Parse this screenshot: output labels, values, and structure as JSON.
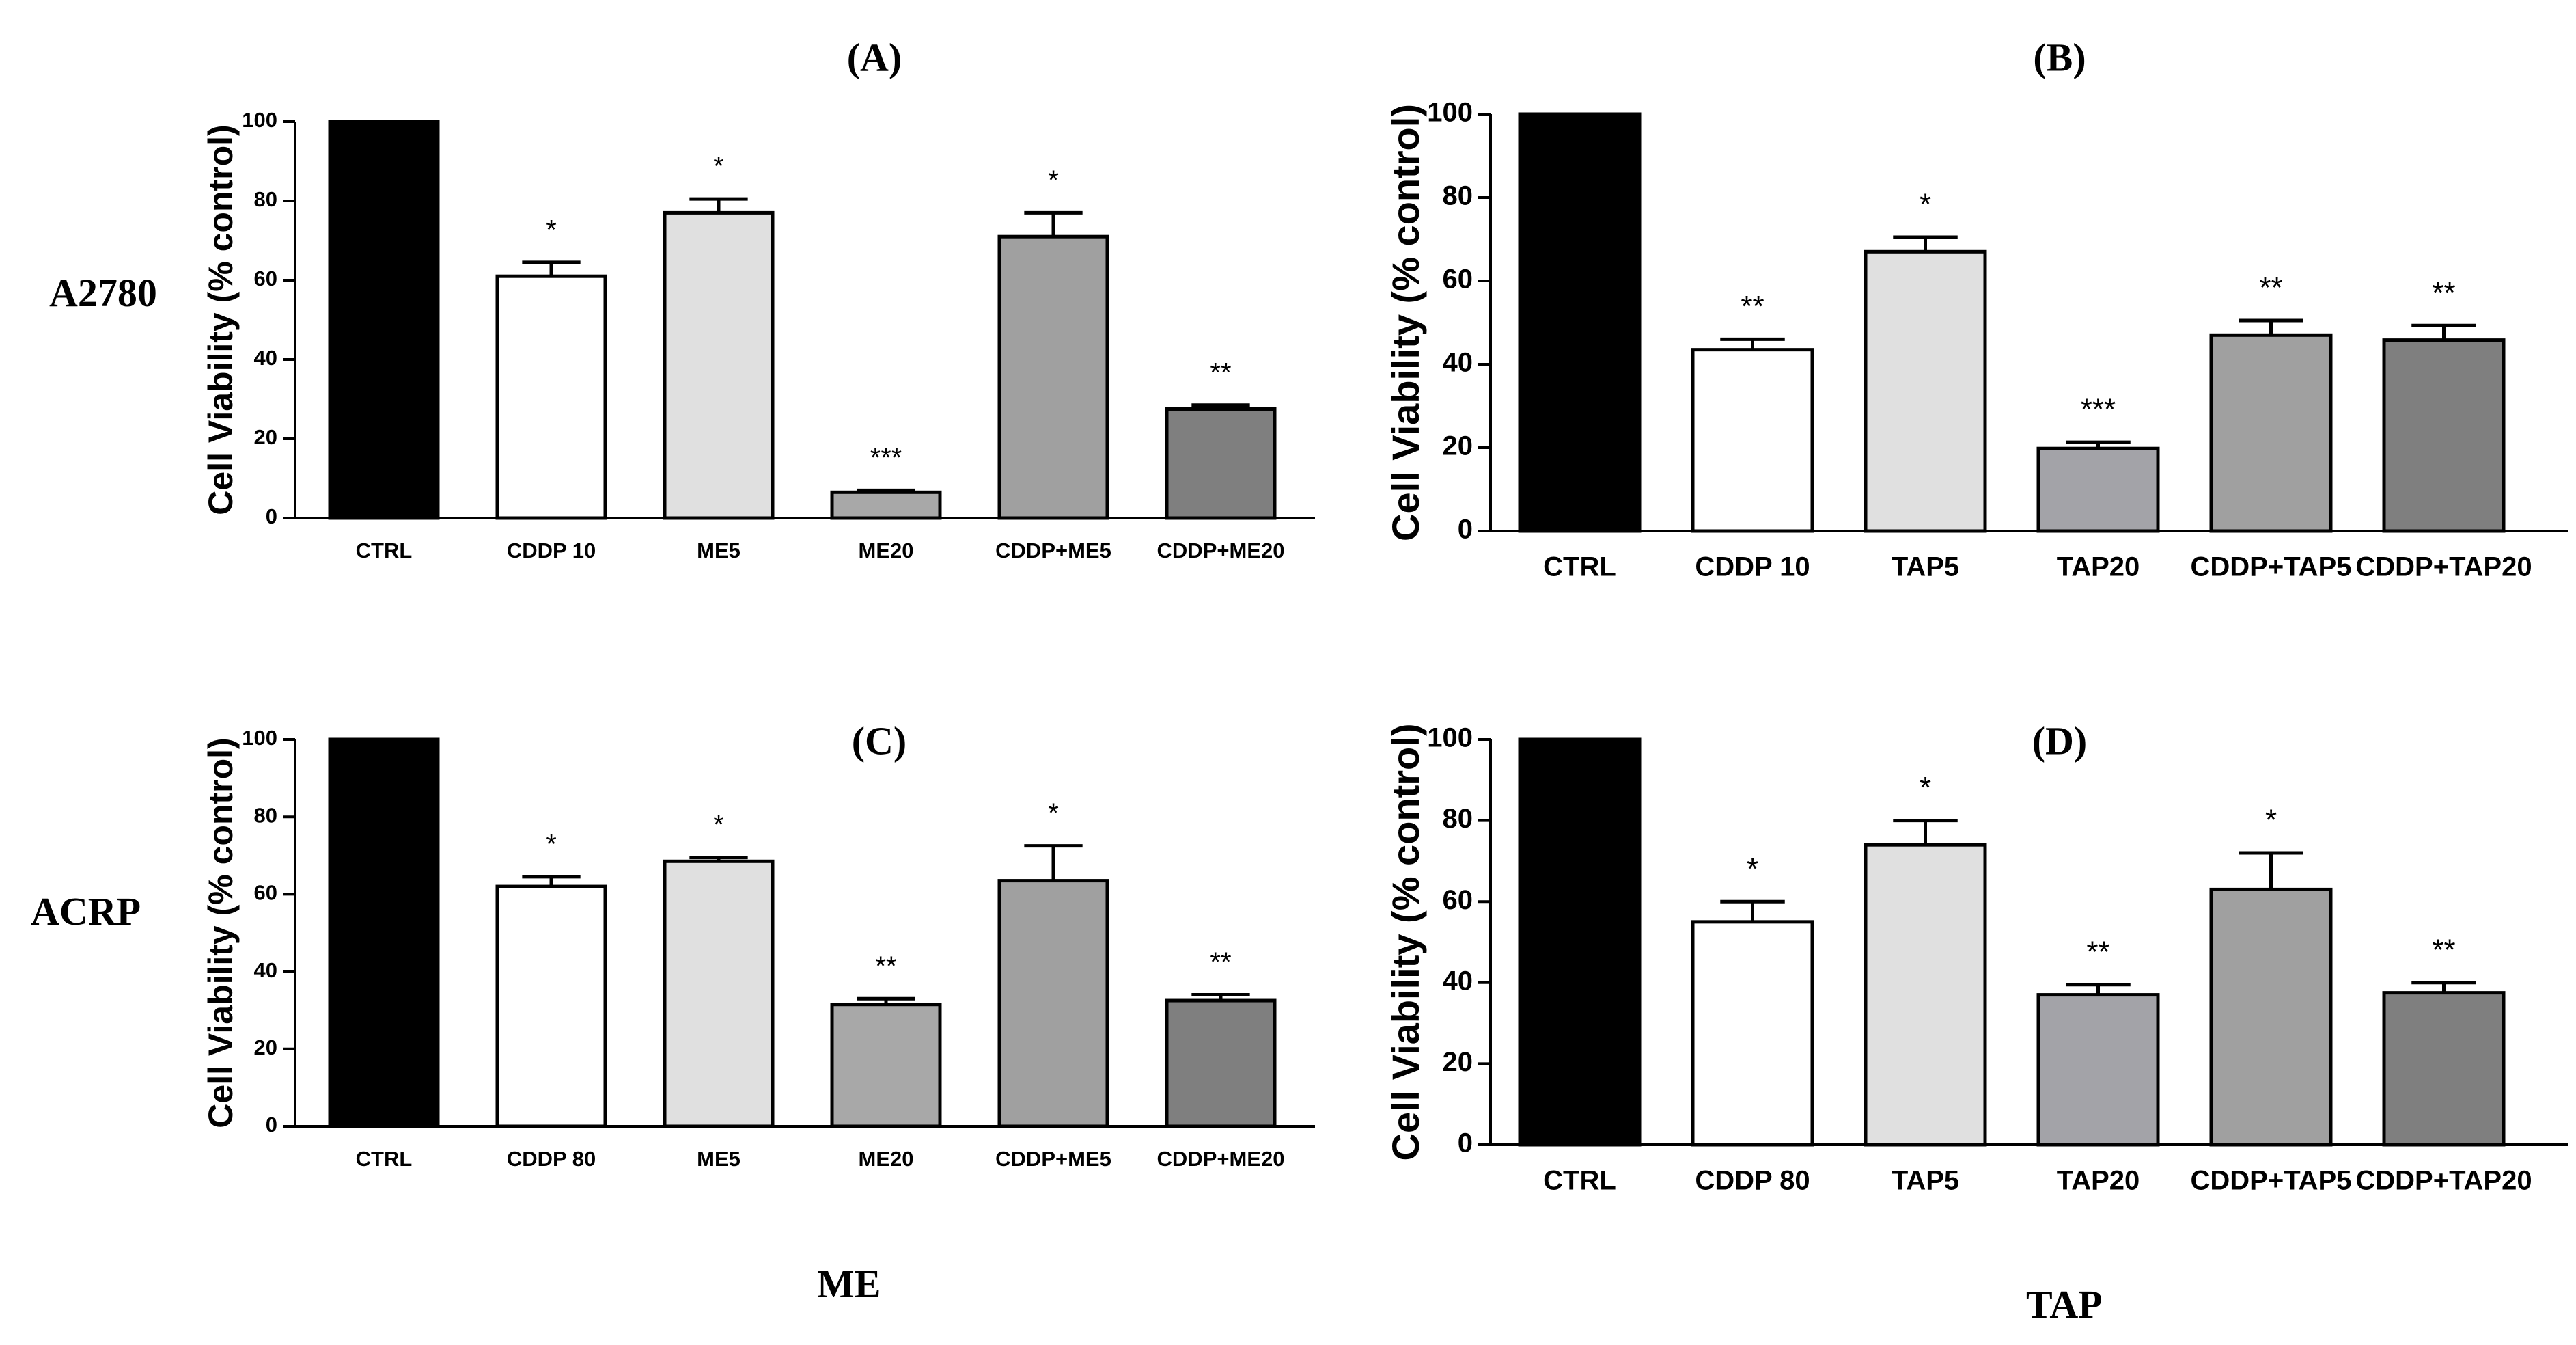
{
  "figure": {
    "row_labels": [
      "A2780",
      "ACRP"
    ],
    "column_labels": [
      "ME",
      "TAP"
    ]
  },
  "colors": {
    "ctrl": "#000000",
    "cddp": "#ffffff",
    "low": "#e0e0e0",
    "high_me": "#a8a8a8",
    "high_tap": "#a3a3a8",
    "combo_low": "#a0a0a0",
    "combo_high": "#7f7f7f"
  },
  "chart_data": [
    {
      "type": "bar",
      "panel": "(A)",
      "title": "(A)",
      "ylabel": "Cell Viability (% control)",
      "xlabel": "",
      "ylim": [
        0,
        100
      ],
      "yticks": [
        "0",
        "20",
        "40",
        "60",
        "80",
        "100"
      ],
      "categories": [
        "CTRL",
        "CDDP 10",
        "ME5",
        "ME20",
        "CDDP+ME5",
        "CDDP+ME20"
      ],
      "values": [
        100,
        61,
        77,
        6.5,
        71,
        27.5
      ],
      "errors": [
        0,
        3.5,
        3.5,
        0.5,
        6,
        1
      ],
      "significance": [
        "",
        "*",
        "*",
        "***",
        "*",
        "**"
      ],
      "bar_colors": [
        "#000000",
        "#ffffff",
        "#e0e0e0",
        "#a8a8a8",
        "#a0a0a0",
        "#7f7f7f"
      ]
    },
    {
      "type": "bar",
      "panel": "(B)",
      "title": "(B)",
      "ylabel": "Cell Viability (% control)",
      "xlabel": "",
      "ylim": [
        0,
        100
      ],
      "yticks": [
        "0",
        "20",
        "40",
        "60",
        "80",
        "100"
      ],
      "categories": [
        "CTRL",
        "CDDP 10",
        "TAP5",
        "TAP20",
        "CDDP+TAP5",
        "CDDP+TAP20"
      ],
      "values": [
        100,
        43.5,
        67,
        19.8,
        47,
        45.8
      ],
      "errors": [
        0,
        2.5,
        3.5,
        1.5,
        3.5,
        3.5
      ],
      "significance": [
        "",
        "**",
        "*",
        "***",
        "**",
        "**"
      ],
      "bar_colors": [
        "#000000",
        "#ffffff",
        "#e0e0e0",
        "#a3a3a8",
        "#a0a0a0",
        "#7f7f7f"
      ]
    },
    {
      "type": "bar",
      "panel": "(C)",
      "title": "(C)",
      "ylabel": "Cell Viability (% control)",
      "xlabel": "",
      "ylim": [
        0,
        100
      ],
      "yticks": [
        "0",
        "20",
        "40",
        "60",
        "80",
        "100"
      ],
      "categories": [
        "CTRL",
        "CDDP 80",
        "ME5",
        "ME20",
        "CDDP+ME5",
        "CDDP+ME20"
      ],
      "values": [
        100,
        62,
        68.5,
        31.5,
        63.5,
        32.5
      ],
      "errors": [
        0,
        2.5,
        1,
        1.5,
        9,
        1.5
      ],
      "significance": [
        "",
        "*",
        "*",
        "**",
        "*",
        "**"
      ],
      "bar_colors": [
        "#000000",
        "#ffffff",
        "#e0e0e0",
        "#a8a8a8",
        "#a0a0a0",
        "#7f7f7f"
      ]
    },
    {
      "type": "bar",
      "panel": "(D)",
      "title": "(D)",
      "ylabel": "Cell Viability (% control)",
      "xlabel": "",
      "ylim": [
        0,
        100
      ],
      "yticks": [
        "0",
        "20",
        "40",
        "60",
        "80",
        "100"
      ],
      "categories": [
        "CTRL",
        "CDDP 80",
        "TAP5",
        "TAP20",
        "CDDP+TAP5",
        "CDDP+TAP20"
      ],
      "values": [
        100,
        55,
        74,
        37,
        63,
        37.5
      ],
      "errors": [
        0,
        5,
        6,
        2.5,
        9,
        2.5
      ],
      "significance": [
        "",
        "*",
        "*",
        "**",
        "*",
        "**"
      ],
      "bar_colors": [
        "#000000",
        "#ffffff",
        "#e0e0e0",
        "#a3a3a8",
        "#a0a0a0",
        "#7f7f7f"
      ]
    }
  ]
}
